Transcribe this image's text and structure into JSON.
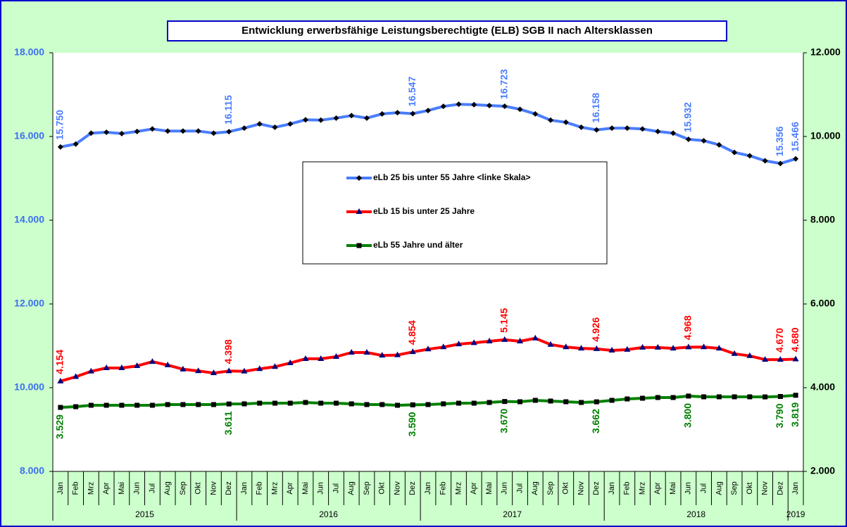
{
  "chart_data": {
    "type": "line",
    "title": "Entwicklung erwerbsfähige Leistungsberechtigte (ELB) SGB II nach Altersklassen",
    "categories": [
      "Jan",
      "Feb",
      "Mrz",
      "Apr",
      "Mai",
      "Jun",
      "Jul",
      "Aug",
      "Sep",
      "Okt",
      "Nov",
      "Dez",
      "Jan",
      "Feb",
      "Mrz",
      "Apr",
      "Mai",
      "Jun",
      "Jul",
      "Aug",
      "Sep",
      "Okt",
      "Nov",
      "Dez",
      "Jan",
      "Feb",
      "Mrz",
      "Apr",
      "Mai",
      "Jun",
      "Jul",
      "Aug",
      "Sep",
      "Okt",
      "Nov",
      "Dez",
      "Jan",
      "Feb",
      "Mrz",
      "Apr",
      "Mai",
      "Jun",
      "Jul",
      "Aug",
      "Sep",
      "Okt",
      "Nov",
      "Dez",
      "Jan"
    ],
    "category_groups": [
      {
        "label": "2015",
        "count": 12
      },
      {
        "label": "2016",
        "count": 12
      },
      {
        "label": "2017",
        "count": 12
      },
      {
        "label": "2018",
        "count": 12
      },
      {
        "label": "2019",
        "count": 1
      }
    ],
    "ylim": [
      8000,
      18000
    ],
    "yticks": [
      {
        "value": 8000,
        "label": "8.000"
      },
      {
        "value": 10000,
        "label": "10.000"
      },
      {
        "value": 12000,
        "label": "12.000"
      },
      {
        "value": 14000,
        "label": "14.000"
      },
      {
        "value": 16000,
        "label": "16.000"
      },
      {
        "value": 18000,
        "label": "18.000"
      }
    ],
    "y2lim": [
      2000,
      12000
    ],
    "y2ticks": [
      {
        "value": 2000,
        "label": "2.000"
      },
      {
        "value": 4000,
        "label": "4.000"
      },
      {
        "value": 6000,
        "label": "6.000"
      },
      {
        "value": 8000,
        "label": "8.000"
      },
      {
        "value": 10000,
        "label": "10.000"
      },
      {
        "value": 12000,
        "label": "12.000"
      }
    ],
    "series": [
      {
        "name": "eLb 25 bis unter 55 Jahre <linke Skala>",
        "color": "#4a7dff",
        "marker": "diamond",
        "axis": "y",
        "label_side": "above",
        "values": [
          15750,
          15820,
          16080,
          16100,
          16070,
          16120,
          16180,
          16130,
          16130,
          16130,
          16080,
          16115,
          16200,
          16300,
          16220,
          16300,
          16400,
          16390,
          16440,
          16500,
          16440,
          16540,
          16570,
          16547,
          16620,
          16720,
          16770,
          16760,
          16740,
          16723,
          16650,
          16540,
          16390,
          16340,
          16220,
          16158,
          16200,
          16200,
          16180,
          16120,
          16080,
          15932,
          15900,
          15800,
          15620,
          15540,
          15420,
          15356,
          15466
        ],
        "value_labels": [
          "15.750",
          null,
          null,
          null,
          null,
          null,
          null,
          null,
          null,
          null,
          null,
          "16.115",
          null,
          null,
          null,
          null,
          null,
          null,
          null,
          null,
          null,
          null,
          null,
          "16.547",
          null,
          null,
          null,
          null,
          null,
          "16.723",
          null,
          null,
          null,
          null,
          null,
          "16.158",
          null,
          null,
          null,
          null,
          null,
          "15.932",
          null,
          null,
          null,
          null,
          null,
          "15.356",
          "15.466"
        ]
      },
      {
        "name": "eLb 15 bis unter 25 Jahre",
        "color": "#ff0000",
        "marker": "triangle",
        "axis": "y2",
        "label_side": "above",
        "values": [
          4154,
          4260,
          4390,
          4470,
          4470,
          4520,
          4620,
          4540,
          4440,
          4400,
          4350,
          4398,
          4390,
          4450,
          4500,
          4590,
          4690,
          4690,
          4740,
          4840,
          4840,
          4770,
          4780,
          4854,
          4920,
          4970,
          5040,
          5070,
          5110,
          5145,
          5110,
          5180,
          5030,
          4970,
          4940,
          4926,
          4890,
          4910,
          4960,
          4960,
          4940,
          4968,
          4970,
          4940,
          4810,
          4760,
          4670,
          4670,
          4680
        ],
        "value_labels": [
          "4.154",
          null,
          null,
          null,
          null,
          null,
          null,
          null,
          null,
          null,
          null,
          "4.398",
          null,
          null,
          null,
          null,
          null,
          null,
          null,
          null,
          null,
          null,
          null,
          "4.854",
          null,
          null,
          null,
          null,
          null,
          "5.145",
          null,
          null,
          null,
          null,
          null,
          "4.926",
          null,
          null,
          null,
          null,
          null,
          "4.968",
          null,
          null,
          null,
          null,
          null,
          "4.670",
          "4.680"
        ]
      },
      {
        "name": "eLb 55 Jahre und älter",
        "color": "#008000",
        "marker": "square",
        "axis": "y2",
        "label_side": "below",
        "values": [
          3529,
          3546,
          3580,
          3580,
          3580,
          3580,
          3580,
          3597,
          3597,
          3597,
          3597,
          3611,
          3614,
          3630,
          3630,
          3630,
          3647,
          3630,
          3630,
          3614,
          3597,
          3597,
          3580,
          3590,
          3597,
          3614,
          3630,
          3630,
          3647,
          3670,
          3664,
          3698,
          3681,
          3664,
          3647,
          3662,
          3698,
          3731,
          3748,
          3765,
          3765,
          3800,
          3782,
          3782,
          3782,
          3782,
          3780,
          3790,
          3819
        ],
        "value_labels": [
          "3.529",
          null,
          null,
          null,
          null,
          null,
          null,
          null,
          null,
          null,
          null,
          "3.611",
          null,
          null,
          null,
          null,
          null,
          null,
          null,
          null,
          null,
          null,
          null,
          "3.590",
          null,
          null,
          null,
          null,
          null,
          "3.670",
          null,
          null,
          null,
          null,
          null,
          "3.662",
          null,
          null,
          null,
          null,
          null,
          "3.800",
          null,
          null,
          null,
          null,
          null,
          "3.790",
          "3.819"
        ]
      }
    ]
  }
}
